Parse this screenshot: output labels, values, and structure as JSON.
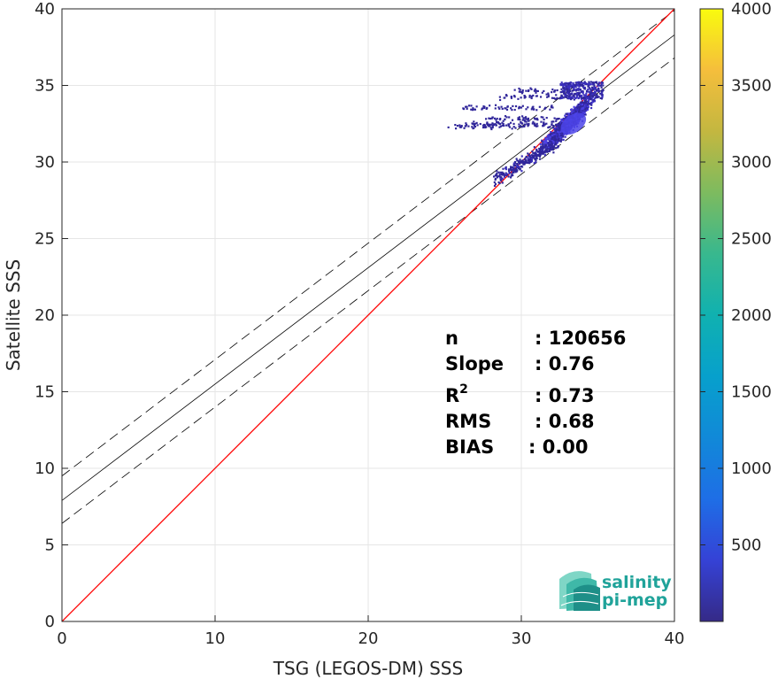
{
  "chart_data": {
    "type": "heatmap",
    "title": "",
    "xlabel": "TSG (LEGOS-DM) SSS",
    "ylabel": "Satellite SSS",
    "xlim": [
      0,
      40
    ],
    "ylim": [
      0,
      40
    ],
    "xticks": [
      "0",
      "10",
      "20",
      "30",
      "40"
    ],
    "yticks": [
      "0",
      "5",
      "10",
      "15",
      "20",
      "25",
      "30",
      "35",
      "40"
    ],
    "grid": true,
    "colorbar": {
      "range": [
        0,
        4000
      ],
      "ticks": [
        "500",
        "1000",
        "1500",
        "2000",
        "2500",
        "3000",
        "3500",
        "4000"
      ],
      "colormap": "parula"
    },
    "lines": {
      "identity": {
        "slope": 1,
        "intercept": 0,
        "color": "#ff0000"
      },
      "fit": {
        "slope": 0.76,
        "intercept": 7.9,
        "color": "#000000"
      },
      "fit_upper": {
        "slope": 0.76,
        "intercept": 9.5,
        "color": "#000000",
        "style": "dashed"
      },
      "fit_lower": {
        "slope": 0.76,
        "intercept": 6.4,
        "color": "#000000",
        "style": "dashed"
      }
    },
    "density_cloud": {
      "x_range": [
        24.8,
        35.4
      ],
      "y_range": [
        28.4,
        35.4
      ],
      "core": [
        33.0,
        32.6
      ],
      "count_range": [
        1,
        600
      ]
    },
    "stats": [
      {
        "label": "n",
        "value": ": 120656"
      },
      {
        "label": "Slope",
        "value": ": 0.76"
      },
      {
        "label": "R",
        "sup": "2",
        "value": ": 0.73"
      },
      {
        "label": "RMS",
        "value": ": 0.68"
      },
      {
        "label": "BIAS",
        "value": ": 0.00"
      }
    ]
  },
  "logo": {
    "line1": "salinity",
    "line2": "pi-mep"
  }
}
